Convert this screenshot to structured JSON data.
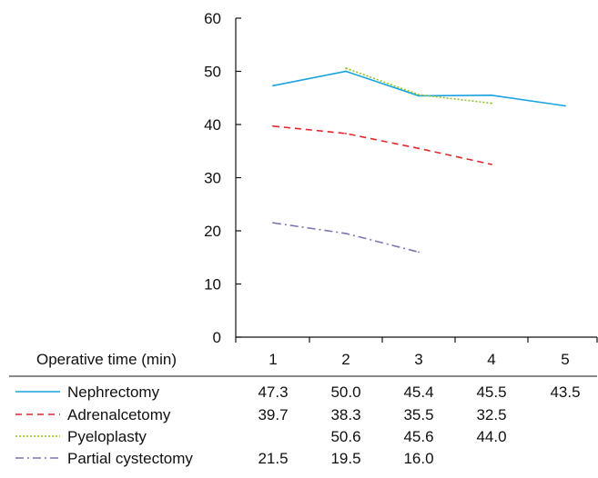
{
  "chart_data": {
    "type": "line",
    "xlabel": "Operative time (min)",
    "ylabel": "",
    "categories": [
      "1",
      "2",
      "3",
      "4",
      "5"
    ],
    "ylim": [
      0,
      60
    ],
    "yticks": [
      "0",
      "10",
      "20",
      "30",
      "40",
      "50",
      "60"
    ],
    "grid": false,
    "legend_placement": "table below plot",
    "series": [
      {
        "name": "Nephrectomy",
        "color": "#1aa3e0",
        "dash": "solid",
        "values": [
          47.3,
          50.0,
          45.4,
          45.5,
          43.5
        ],
        "labels": [
          "47.3",
          "50.0",
          "45.4",
          "45.5",
          "43.5"
        ]
      },
      {
        "name": "Adrenalcetomy",
        "color": "#e0262c",
        "dash": "dashed",
        "values": [
          39.7,
          38.3,
          35.5,
          32.5,
          null
        ],
        "labels": [
          "39.7",
          "38.3",
          "35.5",
          "32.5",
          ""
        ]
      },
      {
        "name": "Pyeloplasty",
        "color": "#8ec21f",
        "dash": "dotted",
        "values": [
          null,
          50.6,
          45.6,
          44.0,
          null
        ],
        "labels": [
          "",
          "50.6",
          "45.6",
          "44.0",
          ""
        ]
      },
      {
        "name": "Partial cystectomy",
        "color": "#7a76b5",
        "dash": "dashdot",
        "values": [
          21.5,
          19.5,
          16.0,
          null,
          null
        ],
        "labels": [
          "21.5",
          "19.5",
          "16.0",
          "",
          ""
        ]
      }
    ]
  }
}
